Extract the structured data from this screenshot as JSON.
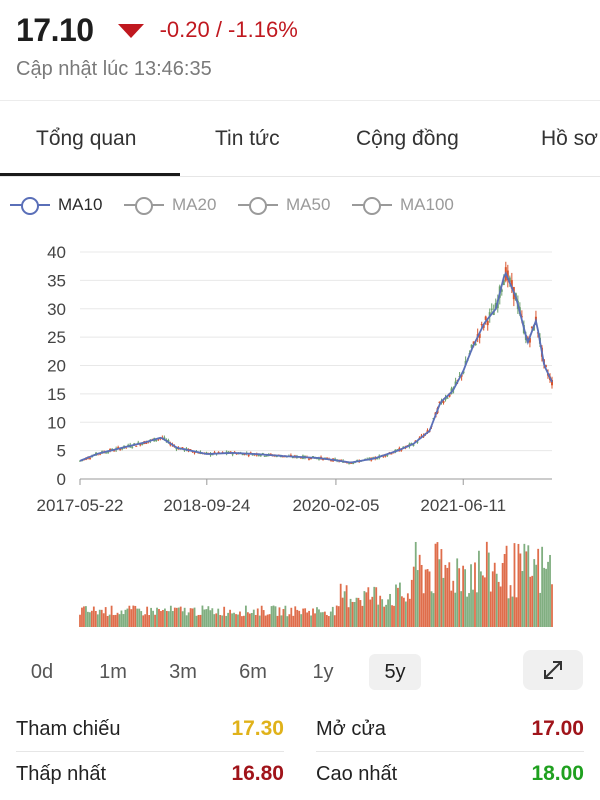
{
  "header": {
    "price": "17.10",
    "change": "-0.20 / -1.16%",
    "updated": "Cập nhật lúc 13:46:35"
  },
  "colors": {
    "down": "#c0181f",
    "up": "#1fa01f",
    "ref": "#e0b21a",
    "ma10": "#5a6fb8",
    "candle_up": "#6aa06a",
    "candle_down": "#d9542c"
  },
  "tabs": [
    {
      "label": "Tổng quan",
      "active": true
    },
    {
      "label": "Tin tức",
      "active": false
    },
    {
      "label": "Cộng đồng",
      "active": false
    },
    {
      "label": "Hồ sơ",
      "active": false
    }
  ],
  "legend": [
    {
      "label": "MA10",
      "active": true
    },
    {
      "label": "MA20",
      "active": false
    },
    {
      "label": "MA50",
      "active": false
    },
    {
      "label": "MA100",
      "active": false
    }
  ],
  "ranges": [
    {
      "label": "0d",
      "active": false
    },
    {
      "label": "1m",
      "active": false
    },
    {
      "label": "3m",
      "active": false
    },
    {
      "label": "6m",
      "active": false
    },
    {
      "label": "1y",
      "active": false
    },
    {
      "label": "5y",
      "active": true
    }
  ],
  "expand_icon": "expand-icon",
  "stats": [
    {
      "label": "Tham chiếu",
      "value": "17.30",
      "color": "#e0b21a"
    },
    {
      "label": "Mở cửa",
      "value": "17.00",
      "color": "#a0141a"
    },
    {
      "label": "Thấp nhất",
      "value": "16.80",
      "color": "#a0141a"
    },
    {
      "label": "Cao nhất",
      "value": "18.00",
      "color": "#1fa01f"
    }
  ],
  "chart_data": {
    "type": "line",
    "x_tick_labels": [
      "2017-05-22",
      "2018-09-24",
      "2020-02-05",
      "2021-06-11"
    ],
    "y_ticks": [
      0,
      5,
      10,
      15,
      20,
      25,
      30,
      35,
      40
    ],
    "ylim": [
      0,
      40
    ],
    "series": [
      {
        "name": "MA10",
        "x": [
          "2017-05-22",
          "2017-08-01",
          "2017-11-01",
          "2018-02-01",
          "2018-04-01",
          "2018-06-01",
          "2018-09-24",
          "2019-01-01",
          "2019-04-01",
          "2019-08-01",
          "2019-12-01",
          "2020-02-05",
          "2020-04-01",
          "2020-07-01",
          "2020-10-01",
          "2020-12-01",
          "2021-02-01",
          "2021-03-15",
          "2021-05-01",
          "2021-06-11",
          "2021-07-15",
          "2021-09-01",
          "2021-10-15",
          "2021-11-20",
          "2022-01-01",
          "2022-02-15",
          "2022-03-20",
          "2022-04-20",
          "2022-05-20"
        ],
        "values": [
          3.2,
          4.5,
          5.5,
          6.5,
          7.3,
          5.5,
          4.4,
          4.6,
          4.4,
          4.0,
          3.7,
          3.3,
          2.9,
          3.6,
          5.0,
          6.2,
          8.5,
          13.5,
          15.5,
          19.0,
          23.0,
          27.5,
          30.0,
          36.5,
          32.0,
          24.0,
          28.0,
          20.0,
          17.1
        ]
      }
    ],
    "volume": {
      "x_range": [
        "2017-05-22",
        "2022-05-20"
      ],
      "note": "volume bars shown below price chart"
    },
    "grid": "horizontal",
    "legend_position": "top-left"
  }
}
